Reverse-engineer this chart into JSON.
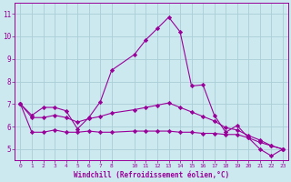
{
  "xlabel": "Windchill (Refroidissement éolien,°C)",
  "background_color": "#cce9f0",
  "grid_color": "#aacdd6",
  "line_color": "#990099",
  "x_ticks": [
    0,
    1,
    2,
    3,
    4,
    5,
    6,
    7,
    8,
    10,
    11,
    12,
    13,
    14,
    15,
    16,
    17,
    18,
    19,
    20,
    21,
    22,
    23
  ],
  "ylim": [
    4.5,
    11.5
  ],
  "xlim": [
    -0.5,
    23.5
  ],
  "yticks": [
    5,
    6,
    7,
    8,
    9,
    10,
    11
  ],
  "line1_x": [
    0,
    1,
    2,
    3,
    4,
    5,
    6,
    7,
    8,
    10,
    11,
    12,
    13,
    14,
    15,
    16,
    17,
    18,
    19,
    20,
    21,
    22,
    23
  ],
  "line1_y": [
    7.0,
    6.5,
    6.85,
    6.85,
    6.7,
    5.9,
    6.4,
    7.1,
    8.5,
    9.2,
    9.85,
    10.35,
    10.85,
    10.2,
    7.8,
    7.85,
    6.5,
    5.75,
    6.05,
    5.5,
    5.0,
    4.7,
    5.0
  ],
  "line2_x": [
    0,
    1,
    2,
    3,
    4,
    5,
    6,
    7,
    8,
    10,
    11,
    12,
    13,
    14,
    15,
    16,
    17,
    18,
    19,
    20,
    21,
    22,
    23
  ],
  "line2_y": [
    7.0,
    5.75,
    5.75,
    5.85,
    5.75,
    5.75,
    5.8,
    5.75,
    5.75,
    5.8,
    5.8,
    5.8,
    5.8,
    5.75,
    5.75,
    5.7,
    5.7,
    5.65,
    5.65,
    5.5,
    5.3,
    5.15,
    5.0
  ],
  "line3_x": [
    0,
    1,
    2,
    3,
    4,
    5,
    6,
    7,
    8,
    10,
    11,
    12,
    13,
    14,
    15,
    16,
    17,
    18,
    19,
    20,
    21,
    22,
    23
  ],
  "line3_y": [
    7.0,
    6.4,
    6.4,
    6.5,
    6.4,
    6.2,
    6.35,
    6.45,
    6.6,
    6.75,
    6.85,
    6.95,
    7.05,
    6.85,
    6.65,
    6.45,
    6.25,
    5.95,
    5.85,
    5.6,
    5.4,
    5.15,
    5.0
  ]
}
